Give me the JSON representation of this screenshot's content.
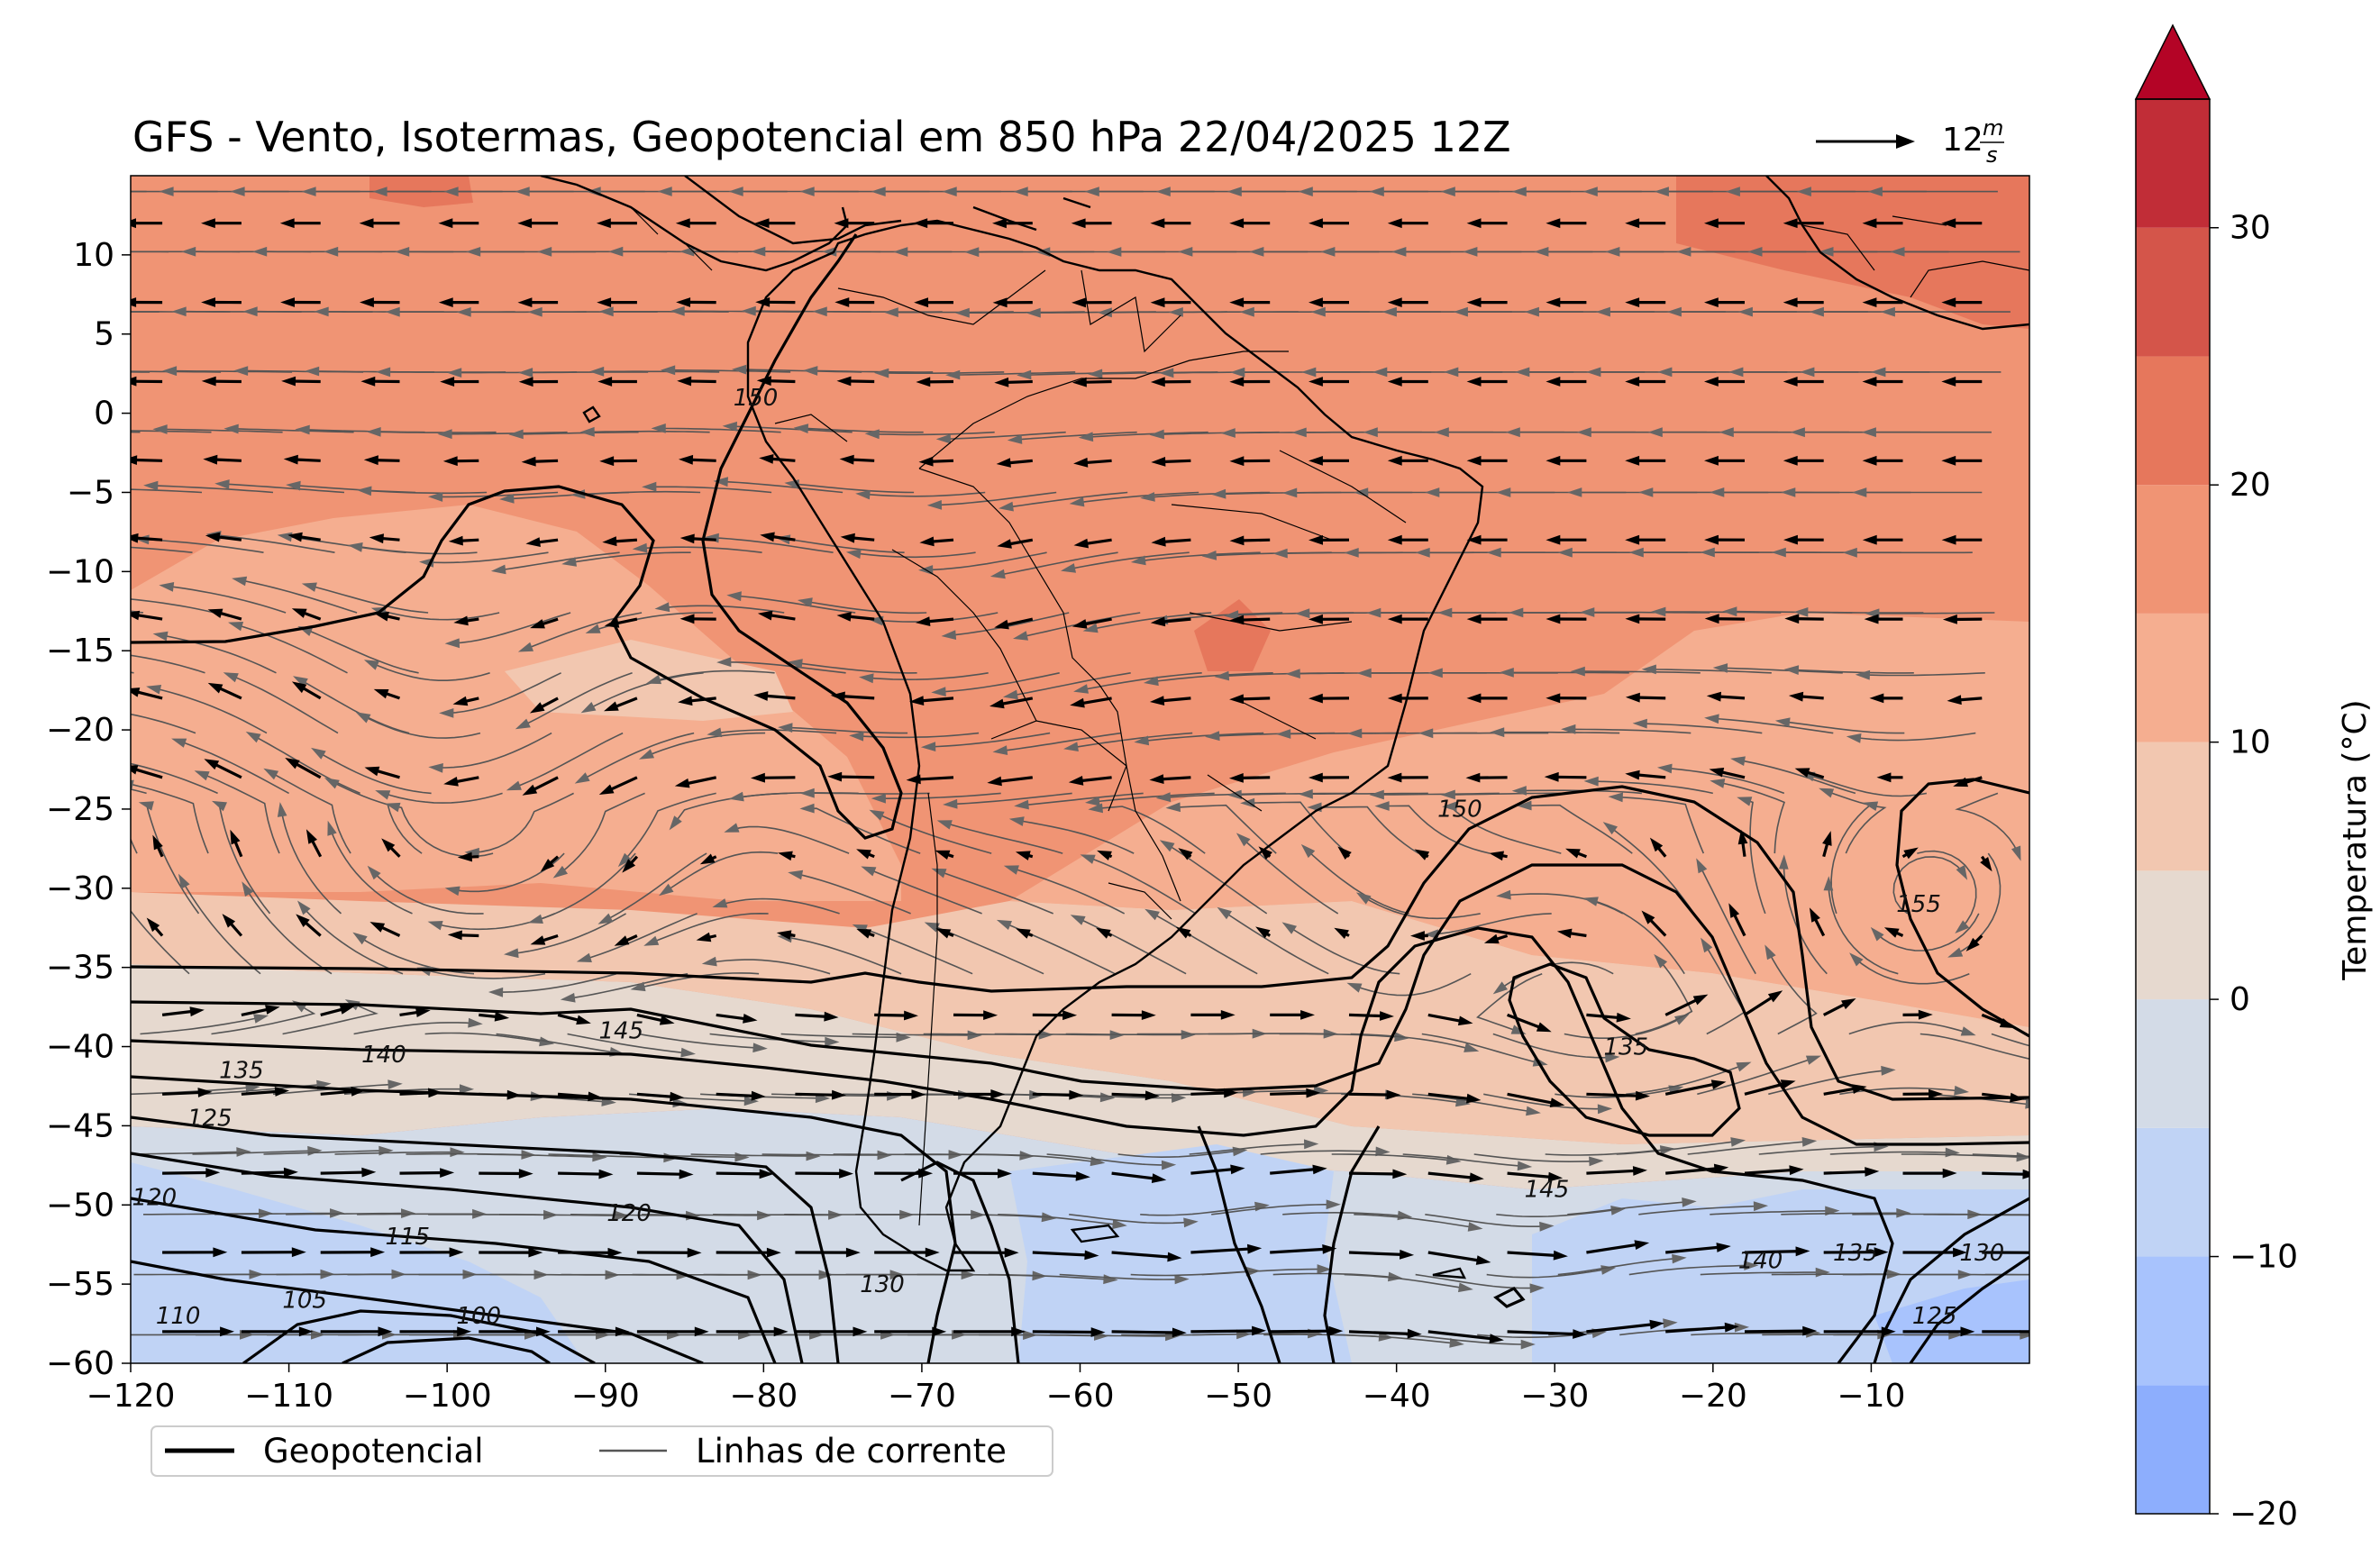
{
  "title": "GFS - Vento, Isotermas, Geopotencial em 850 hPa 22/04/2025 12Z",
  "quiver_key": {
    "magnitude": "12",
    "unit_numerator": "m",
    "unit_denominator": "s"
  },
  "map": {
    "lon_range": [
      -120,
      0
    ],
    "lat_range": [
      -60,
      15
    ],
    "xticks": [
      -120,
      -110,
      -100,
      -90,
      -80,
      -70,
      -60,
      -50,
      -40,
      -30,
      -20,
      -10
    ],
    "xtick_labels": [
      "−120",
      "−110",
      "−100",
      "−90",
      "−80",
      "−70",
      "−60",
      "−50",
      "−40",
      "−30",
      "−20",
      "−10"
    ],
    "yticks": [
      10,
      5,
      0,
      -5,
      -10,
      -15,
      -20,
      -25,
      -30,
      -35,
      -40,
      -45,
      -50,
      -55,
      -60
    ],
    "ytick_labels": [
      "10",
      "5",
      "0",
      "−5",
      "−10",
      "−15",
      "−20",
      "−25",
      "−30",
      "−35",
      "−40",
      "−45",
      "−50",
      "−55",
      "−60"
    ]
  },
  "legend": {
    "geopotential": "Geopotencial",
    "streamlines": "Linhas de corrente"
  },
  "colorbar": {
    "label": "Temperatura (°C)",
    "ticks": [
      -20,
      -10,
      0,
      10,
      20,
      30
    ],
    "tick_labels": [
      "−20",
      "−10",
      "0",
      "10",
      "20",
      "30"
    ],
    "range": [
      -20,
      35
    ],
    "extend": "max",
    "bands": [
      {
        "from": -20,
        "to": -15,
        "color": "#8daefd"
      },
      {
        "from": -15,
        "to": -10,
        "color": "#a8c3fd"
      },
      {
        "from": -10,
        "to": -5,
        "color": "#c0d3f5"
      },
      {
        "from": -5,
        "to": 0,
        "color": "#d3dbe7"
      },
      {
        "from": 0,
        "to": 5,
        "color": "#e6d9cf"
      },
      {
        "from": 5,
        "to": 10,
        "color": "#f2c7b0"
      },
      {
        "from": 10,
        "to": 15,
        "color": "#f5ae90"
      },
      {
        "from": 15,
        "to": 20,
        "color": "#f09474"
      },
      {
        "from": 20,
        "to": 25,
        "color": "#e6775c"
      },
      {
        "from": 25,
        "to": 30,
        "color": "#d4554a"
      },
      {
        "from": 30,
        "to": 35,
        "color": "#c12d37"
      }
    ],
    "extend_color": "#b40426"
  },
  "contour_labels": [
    {
      "text": "150",
      "lon": -80.5,
      "lat": 0.5
    },
    {
      "text": "150",
      "lon": -36,
      "lat": -25.5
    },
    {
      "text": "155",
      "lon": -7,
      "lat": -31.5
    },
    {
      "text": "145",
      "lon": -89,
      "lat": -39.5
    },
    {
      "text": "140",
      "lon": -104,
      "lat": -41
    },
    {
      "text": "135",
      "lon": -113,
      "lat": -42
    },
    {
      "text": "135",
      "lon": -25.5,
      "lat": -40.5
    },
    {
      "text": "125",
      "lon": -115,
      "lat": -45
    },
    {
      "text": "120",
      "lon": -118.5,
      "lat": -50
    },
    {
      "text": "120",
      "lon": -88.5,
      "lat": -51
    },
    {
      "text": "115",
      "lon": -102.5,
      "lat": -52.5
    },
    {
      "text": "110",
      "lon": -117,
      "lat": -57.5
    },
    {
      "text": "105",
      "lon": -109,
      "lat": -56.5
    },
    {
      "text": "100",
      "lon": -98,
      "lat": -57.5
    },
    {
      "text": "145",
      "lon": -30.5,
      "lat": -49.5
    },
    {
      "text": "140",
      "lon": -17,
      "lat": -54
    },
    {
      "text": "135",
      "lon": -11,
      "lat": -53.5
    },
    {
      "text": "130",
      "lon": -3,
      "lat": -53.5
    },
    {
      "text": "125",
      "lon": -6,
      "lat": -57.5
    },
    {
      "text": "130",
      "lon": -72.5,
      "lat": -55.5
    }
  ]
}
